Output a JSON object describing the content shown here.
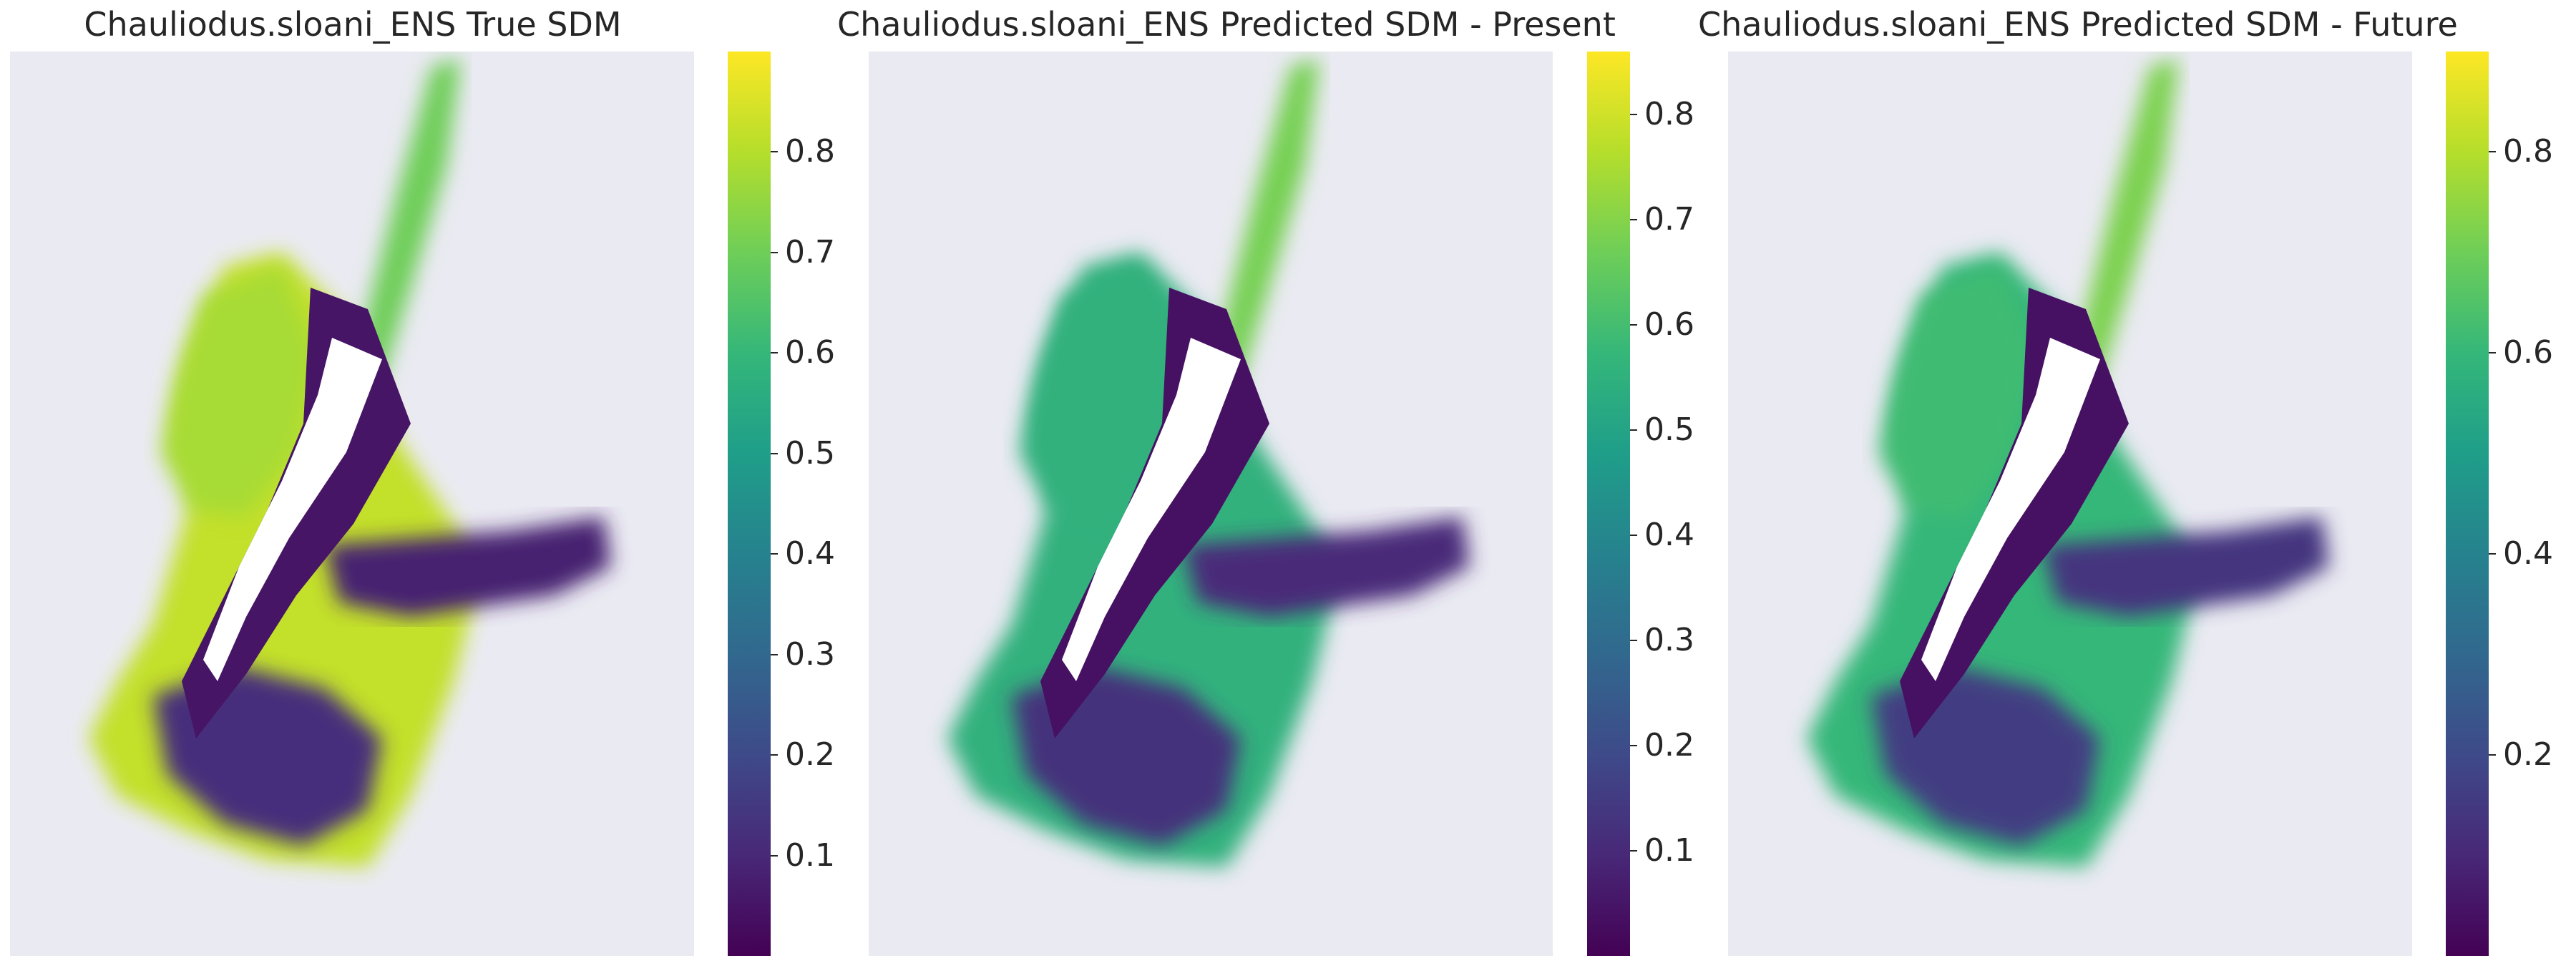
{
  "colormap": {
    "name": "viridis",
    "stops": [
      "#440154",
      "#482878",
      "#3e4a89",
      "#31688e",
      "#26828e",
      "#1f9e89",
      "#35b779",
      "#6ece58",
      "#b5de2b",
      "#fde725"
    ]
  },
  "chart_data": [
    {
      "type": "heatmap",
      "title": "Chauliodus.sloani_ENS True SDM",
      "colorbar": {
        "ticks": [
          0.1,
          0.2,
          0.3,
          0.4,
          0.5,
          0.6,
          0.7,
          0.8
        ],
        "range": [
          0.0,
          0.9
        ]
      },
      "regions": {
        "north_west_shelf": 0.78,
        "inner_coast": 0.05,
        "chatham_rise": 0.08,
        "southern_plateau": 0.12,
        "outer_margin": 0.82,
        "east_ridge": 0.7
      }
    },
    {
      "type": "heatmap",
      "title": "Chauliodus.sloani_ENS Predicted SDM - Present",
      "colorbar": {
        "ticks": [
          0.1,
          0.2,
          0.3,
          0.4,
          0.5,
          0.6,
          0.7,
          0.8
        ],
        "range": [
          0.0,
          0.86
        ]
      },
      "regions": {
        "north_west_shelf": 0.55,
        "inner_coast": 0.04,
        "chatham_rise": 0.1,
        "southern_plateau": 0.12,
        "outer_margin": 0.55,
        "east_ridge": 0.68
      }
    },
    {
      "type": "heatmap",
      "title": "Chauliodus.sloani_ENS Predicted SDM - Future",
      "colorbar": {
        "ticks": [
          0.2,
          0.4,
          0.6,
          0.8
        ],
        "range": [
          0.0,
          0.9
        ]
      },
      "regions": {
        "north_west_shelf": 0.62,
        "inner_coast": 0.04,
        "chatham_rise": 0.14,
        "southern_plateau": 0.16,
        "outer_margin": 0.6,
        "east_ridge": 0.72
      }
    }
  ]
}
